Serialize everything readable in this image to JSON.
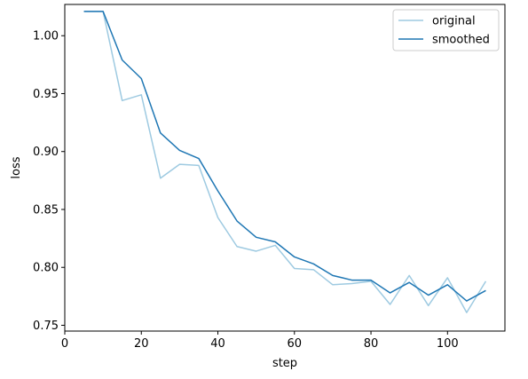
{
  "chart_data": {
    "type": "line",
    "title": "",
    "xlabel": "step",
    "ylabel": "loss",
    "xlim": [
      0,
      115
    ],
    "ylim": [
      0.745,
      1.027
    ],
    "xticks": [
      0,
      20,
      40,
      60,
      80,
      100
    ],
    "yticks": [
      0.75,
      0.8,
      0.85,
      0.9,
      0.95,
      1.0
    ],
    "xtick_labels": [
      "0",
      "20",
      "40",
      "60",
      "80",
      "100"
    ],
    "ytick_labels": [
      "0.75",
      "0.80",
      "0.85",
      "0.90",
      "0.95",
      "1.00"
    ],
    "grid": false,
    "legend_position": "top-right",
    "x": [
      5,
      10,
      15,
      20,
      25,
      30,
      35,
      40,
      45,
      50,
      55,
      60,
      65,
      70,
      75,
      80,
      85,
      90,
      95,
      100,
      105,
      110
    ],
    "series": [
      {
        "name": "original",
        "color": "#9ecae1",
        "values": [
          1.021,
          1.021,
          0.944,
          0.949,
          0.877,
          0.889,
          0.888,
          0.843,
          0.818,
          0.814,
          0.819,
          0.799,
          0.798,
          0.785,
          0.786,
          0.788,
          0.768,
          0.793,
          0.767,
          0.791,
          0.761,
          0.788
        ]
      },
      {
        "name": "smoothed",
        "color": "#1f77b4",
        "values": [
          1.021,
          1.021,
          0.979,
          0.963,
          0.916,
          0.901,
          0.894,
          0.866,
          0.84,
          0.826,
          0.822,
          0.809,
          0.803,
          0.793,
          0.789,
          0.789,
          0.778,
          0.787,
          0.776,
          0.785,
          0.771,
          0.78
        ]
      }
    ]
  }
}
